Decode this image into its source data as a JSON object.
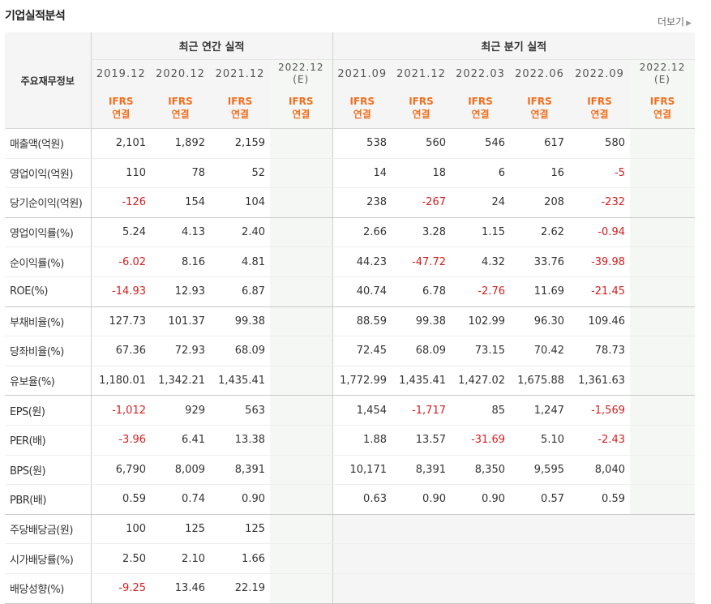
{
  "title": "기업실적분석",
  "more_label": "더보기",
  "header": {
    "row_label": "주요재무정보",
    "annual_title": "최근 연간 실적",
    "quarter_title": "최근 분기 실적",
    "annual_periods": [
      {
        "period": "2019.12",
        "estimate": ""
      },
      {
        "period": "2020.12",
        "estimate": ""
      },
      {
        "period": "2021.12",
        "estimate": ""
      },
      {
        "period": "2022.12",
        "estimate": "(E)"
      }
    ],
    "quarter_periods": [
      {
        "period": "2021.09",
        "estimate": ""
      },
      {
        "period": "2021.12",
        "estimate": ""
      },
      {
        "period": "2022.03",
        "estimate": ""
      },
      {
        "period": "2022.06",
        "estimate": ""
      },
      {
        "period": "2022.09",
        "estimate": ""
      },
      {
        "period": "2022.12",
        "estimate": "(E)"
      }
    ],
    "accounting_top": "IFRS",
    "accounting_bottom": "연결"
  },
  "rows": [
    {
      "label": "매출액(억원)",
      "annual": [
        "2,101",
        "1,892",
        "2,159",
        ""
      ],
      "quarter": [
        "538",
        "560",
        "546",
        "617",
        "580",
        ""
      ]
    },
    {
      "label": "영업이익(억원)",
      "annual": [
        "110",
        "78",
        "52",
        ""
      ],
      "quarter": [
        "14",
        "18",
        "6",
        "16",
        "-5",
        ""
      ]
    },
    {
      "label": "당기순이익(억원)",
      "annual": [
        "-126",
        "154",
        "104",
        ""
      ],
      "quarter": [
        "238",
        "-267",
        "24",
        "208",
        "-232",
        ""
      ]
    },
    {
      "label": "영업이익률(%)",
      "annual": [
        "5.24",
        "4.13",
        "2.40",
        ""
      ],
      "quarter": [
        "2.66",
        "3.28",
        "1.15",
        "2.62",
        "-0.94",
        ""
      ]
    },
    {
      "label": "순이익률(%)",
      "annual": [
        "-6.02",
        "8.16",
        "4.81",
        ""
      ],
      "quarter": [
        "44.23",
        "-47.72",
        "4.32",
        "33.76",
        "-39.98",
        ""
      ]
    },
    {
      "label": "ROE(%)",
      "annual": [
        "-14.93",
        "12.93",
        "6.87",
        ""
      ],
      "quarter": [
        "40.74",
        "6.78",
        "-2.76",
        "11.69",
        "-21.45",
        ""
      ]
    },
    {
      "label": "부채비율(%)",
      "annual": [
        "127.73",
        "101.37",
        "99.38",
        ""
      ],
      "quarter": [
        "88.59",
        "99.38",
        "102.99",
        "96.30",
        "109.46",
        ""
      ]
    },
    {
      "label": "당좌비율(%)",
      "annual": [
        "67.36",
        "72.93",
        "68.09",
        ""
      ],
      "quarter": [
        "72.45",
        "68.09",
        "73.15",
        "70.42",
        "78.73",
        ""
      ]
    },
    {
      "label": "유보율(%)",
      "annual": [
        "1,180.01",
        "1,342.21",
        "1,435.41",
        ""
      ],
      "quarter": [
        "1,772.99",
        "1,435.41",
        "1,427.02",
        "1,675.88",
        "1,361.63",
        ""
      ]
    },
    {
      "label": "EPS(원)",
      "annual": [
        "-1,012",
        "929",
        "563",
        ""
      ],
      "quarter": [
        "1,454",
        "-1,717",
        "85",
        "1,247",
        "-1,569",
        ""
      ]
    },
    {
      "label": "PER(배)",
      "annual": [
        "-3.96",
        "6.41",
        "13.38",
        ""
      ],
      "quarter": [
        "1.88",
        "13.57",
        "-31.69",
        "5.10",
        "-2.43",
        ""
      ]
    },
    {
      "label": "BPS(원)",
      "annual": [
        "6,790",
        "8,009",
        "8,391",
        ""
      ],
      "quarter": [
        "10,171",
        "8,391",
        "8,350",
        "9,595",
        "8,040",
        ""
      ]
    },
    {
      "label": "PBR(배)",
      "annual": [
        "0.59",
        "0.74",
        "0.90",
        ""
      ],
      "quarter": [
        "0.63",
        "0.90",
        "0.90",
        "0.57",
        "0.59",
        ""
      ]
    },
    {
      "label": "주당배당금(원)",
      "annual": [
        "100",
        "125",
        "125",
        ""
      ],
      "quarter": [
        "",
        "",
        "",
        "",
        "",
        ""
      ]
    },
    {
      "label": "시가배당률(%)",
      "annual": [
        "2.50",
        "2.10",
        "1.66",
        ""
      ],
      "quarter": [
        "",
        "",
        "",
        "",
        "",
        ""
      ]
    },
    {
      "label": "배당성향(%)",
      "annual": [
        "-9.25",
        "13.46",
        "22.19",
        ""
      ],
      "quarter": [
        "",
        "",
        "",
        "",
        "",
        ""
      ]
    }
  ]
}
